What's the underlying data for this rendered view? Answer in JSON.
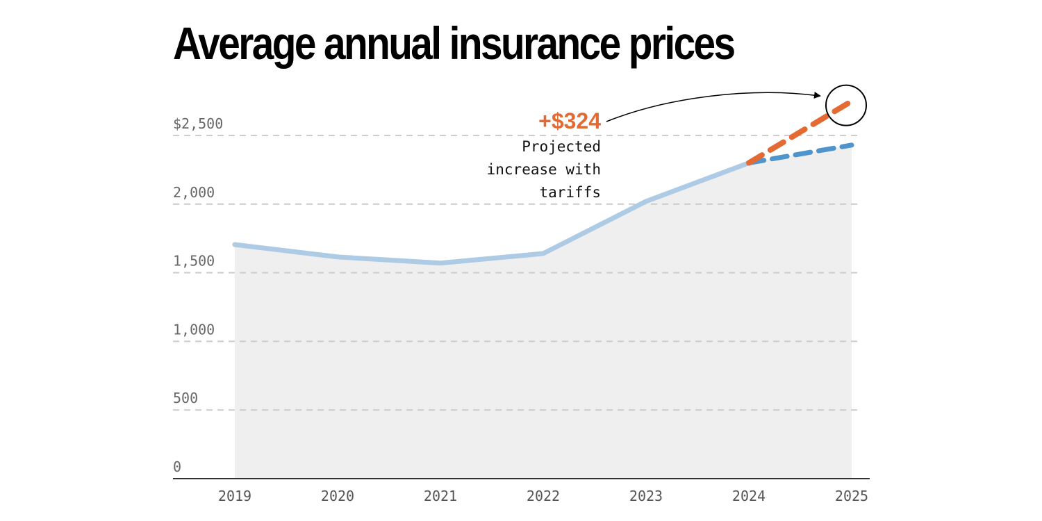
{
  "chart_data": {
    "type": "line",
    "title": "Average annual insurance prices",
    "x": [
      "2019",
      "2020",
      "2021",
      "2022",
      "2023",
      "2024",
      "2025"
    ],
    "ylim": [
      0,
      2500
    ],
    "yticks": [
      0,
      500,
      1000,
      1500,
      2000,
      2500
    ],
    "ytick_labels": [
      "0",
      "500",
      "1,000",
      "1,500",
      "2,000",
      "$2,500"
    ],
    "grid": true,
    "series": [
      {
        "values": [
          1705,
          1615,
          1570,
          1640,
          2020,
          2300,
          null
        ]
      },
      {
        "values": [
          null,
          null,
          null,
          null,
          null,
          2300,
          2430
        ]
      },
      {
        "values": [
          null,
          null,
          null,
          null,
          null,
          2300,
          2750
        ]
      }
    ],
    "annotations": [
      {
        "value": "+$324",
        "lines": [
          "Projected",
          "increase with",
          "tariffs"
        ],
        "target_year": "2025"
      }
    ],
    "colors": {
      "historical": "#aecbe5",
      "projected": "#4f94cc",
      "tariff": "#e46a33",
      "area": "#efefef",
      "grid": "#cccccc",
      "axis": "#333333"
    }
  }
}
